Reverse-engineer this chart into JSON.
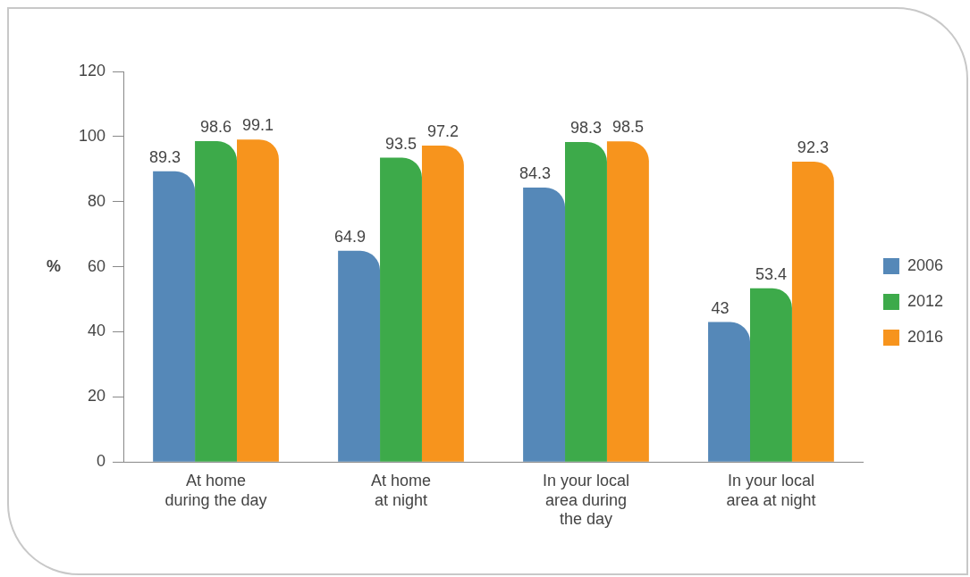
{
  "chart_data": {
    "type": "bar",
    "ylabel": "%",
    "categories": [
      "At home\nduring the day",
      "At home\nat night",
      "In your local\narea during\nthe day",
      "In your local\narea at night"
    ],
    "series": [
      {
        "name": "2006",
        "color": "#5588b8",
        "values": [
          89.3,
          64.9,
          84.3,
          43
        ]
      },
      {
        "name": "2012",
        "color": "#3daa4a",
        "values": [
          98.6,
          93.5,
          98.3,
          53.4
        ]
      },
      {
        "name": "2016",
        "color": "#f7941d",
        "values": [
          99.1,
          97.2,
          98.5,
          92.3
        ]
      }
    ],
    "ylim": [
      0,
      120
    ],
    "yticks": [
      0,
      20,
      40,
      60,
      80,
      100,
      120
    ],
    "grid": false,
    "legend": "right",
    "data_labels": true
  }
}
